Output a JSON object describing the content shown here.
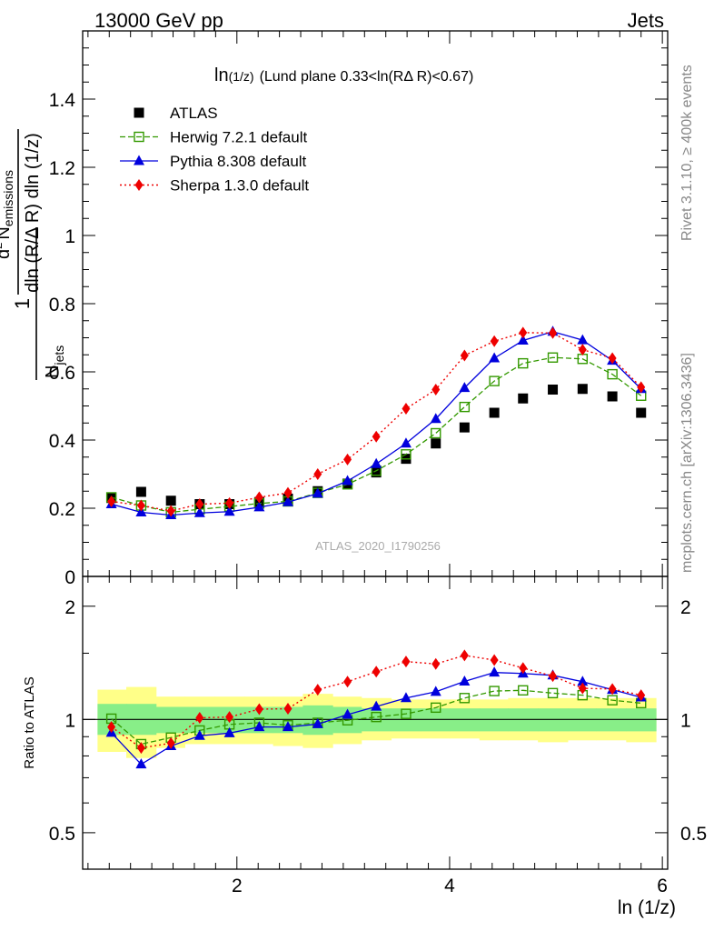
{
  "header": {
    "left": "13000 GeV pp",
    "right": "Jets"
  },
  "side_labels": {
    "rivet": "Rivet 3.1.10, ≥ 400k events",
    "mcplots": "mcplots.cern.ch [arXiv:1306.3436]"
  },
  "watermark": "ATLAS_2020_I1790256",
  "chart_data": [
    {
      "type": "scatter",
      "panel": "main",
      "title": "ln(1/z) (Lund plane 0.33<ln(R/Δ R)<0.67)",
      "title_main": "ln",
      "title_sub": "(1/z)",
      "title_rest": "(Lund plane 0.33<ln(RΔ R)<0.67)",
      "ylabel": "1/N_jets d²N_emissions / dln(R/ΔR) dln(1/z)",
      "ylabel_parts": {
        "one": "1",
        "d2": "d",
        "two": "2",
        "n": "N",
        "emissions": "emissions",
        "njets_n": "N",
        "njets_sub": "jets",
        "denominator": "dln (R/Δ R) dln (1/z)"
      },
      "xlim": [
        0.55,
        6.05
      ],
      "ylim": [
        0,
        1.6
      ],
      "yticks": [
        0,
        0.2,
        0.4,
        0.6,
        0.8,
        1,
        1.2,
        1.4
      ],
      "ytick_labels": [
        "0",
        "0.2",
        "0.4",
        "0.6",
        "0.8",
        "1",
        "1.2",
        "1.4"
      ],
      "x": [
        0.82,
        1.1,
        1.38,
        1.65,
        1.93,
        2.21,
        2.48,
        2.76,
        3.04,
        3.31,
        3.59,
        3.87,
        4.14,
        4.42,
        4.69,
        4.97,
        5.25,
        5.53,
        5.8
      ],
      "series": [
        {
          "name": "ATLAS",
          "style": "atlas",
          "color": "#000000",
          "values": [
            0.23,
            0.248,
            0.222,
            0.212,
            0.212,
            0.218,
            0.228,
            0.25,
            0.272,
            0.305,
            0.345,
            0.39,
            0.437,
            0.48,
            0.522,
            0.548,
            0.55,
            0.528,
            0.48
          ]
        },
        {
          "name": "Herwig 7.2.1 default",
          "style": "herwig",
          "color": "#339900",
          "values": [
            0.232,
            0.208,
            0.188,
            0.197,
            0.205,
            0.214,
            0.22,
            0.245,
            0.27,
            0.31,
            0.358,
            0.42,
            0.497,
            0.573,
            0.625,
            0.642,
            0.638,
            0.593,
            0.53
          ]
        },
        {
          "name": "Pythia 8.308 default",
          "style": "pythia",
          "color": "#0000dd",
          "values": [
            0.212,
            0.188,
            0.18,
            0.186,
            0.19,
            0.203,
            0.218,
            0.243,
            0.28,
            0.33,
            0.39,
            0.462,
            0.553,
            0.64,
            0.692,
            0.718,
            0.693,
            0.633,
            0.55
          ]
        },
        {
          "name": "Sherpa 1.3.0 default",
          "style": "sherpa",
          "color": "#ee0000",
          "values": [
            0.22,
            0.208,
            0.192,
            0.212,
            0.215,
            0.232,
            0.245,
            0.3,
            0.343,
            0.41,
            0.492,
            0.548,
            0.648,
            0.69,
            0.715,
            0.714,
            0.665,
            0.64,
            0.555
          ]
        }
      ],
      "legend_position": "top-left"
    },
    {
      "type": "scatter",
      "panel": "ratio",
      "ylabel": "Ratio to ATLAS",
      "xlabel": "ln (1/z)",
      "xlim": [
        0.55,
        6.05
      ],
      "ylim": [
        0.4,
        2.4
      ],
      "log_y": true,
      "xticks": [
        2,
        4,
        6
      ],
      "xtick_labels": [
        "2",
        "4",
        "6"
      ],
      "yticks": [
        0.5,
        1,
        2
      ],
      "ytick_labels": [
        "0.5",
        "1",
        "2"
      ],
      "x": [
        0.82,
        1.1,
        1.38,
        1.65,
        1.93,
        2.21,
        2.48,
        2.76,
        3.04,
        3.31,
        3.59,
        3.87,
        4.14,
        4.42,
        4.69,
        4.97,
        5.25,
        5.53,
        5.8
      ],
      "bin_edges": [
        0.69,
        0.96,
        1.24,
        1.51,
        1.79,
        2.07,
        2.34,
        2.62,
        2.9,
        3.17,
        3.45,
        3.73,
        4.0,
        4.28,
        4.55,
        4.83,
        5.11,
        5.38,
        5.66,
        5.94
      ],
      "band_inner": {
        "color": "#88ee88",
        "low": [
          0.91,
          0.91,
          0.92,
          0.92,
          0.92,
          0.92,
          0.92,
          0.91,
          0.92,
          0.93,
          0.93,
          0.93,
          0.93,
          0.93,
          0.93,
          0.93,
          0.93,
          0.93,
          0.93
        ],
        "high": [
          1.1,
          1.1,
          1.08,
          1.08,
          1.08,
          1.08,
          1.08,
          1.09,
          1.08,
          1.07,
          1.07,
          1.07,
          1.07,
          1.07,
          1.07,
          1.07,
          1.07,
          1.07,
          1.07
        ]
      },
      "band_outer": {
        "color": "#ffff88",
        "low": [
          0.82,
          0.79,
          0.84,
          0.86,
          0.86,
          0.86,
          0.85,
          0.84,
          0.86,
          0.88,
          0.89,
          0.89,
          0.89,
          0.88,
          0.88,
          0.87,
          0.88,
          0.88,
          0.87
        ],
        "high": [
          1.2,
          1.22,
          1.15,
          1.15,
          1.15,
          1.15,
          1.15,
          1.17,
          1.15,
          1.14,
          1.13,
          1.13,
          1.13,
          1.13,
          1.14,
          1.14,
          1.14,
          1.14,
          1.14
        ]
      },
      "reference_line": 1,
      "series": [
        {
          "name": "Herwig 7.2.1 default",
          "style": "herwig",
          "color": "#339900",
          "values": [
            1.005,
            0.86,
            0.895,
            0.935,
            0.97,
            0.98,
            0.965,
            0.98,
            0.995,
            1.015,
            1.035,
            1.075,
            1.14,
            1.19,
            1.195,
            1.175,
            1.16,
            1.125,
            1.105
          ]
        },
        {
          "name": "Pythia 8.308 default",
          "style": "pythia",
          "color": "#0000dd",
          "values": [
            0.922,
            0.76,
            0.85,
            0.905,
            0.92,
            0.955,
            0.955,
            0.972,
            1.03,
            1.082,
            1.14,
            1.185,
            1.262,
            1.333,
            1.325,
            1.31,
            1.26,
            1.2,
            1.145
          ]
        },
        {
          "name": "Sherpa 1.3.0 default",
          "style": "sherpa",
          "color": "#ee0000",
          "values": [
            0.955,
            0.84,
            0.865,
            1.01,
            1.015,
            1.065,
            1.068,
            1.2,
            1.26,
            1.34,
            1.425,
            1.405,
            1.48,
            1.438,
            1.37,
            1.304,
            1.21,
            1.205,
            1.16
          ]
        }
      ]
    }
  ]
}
